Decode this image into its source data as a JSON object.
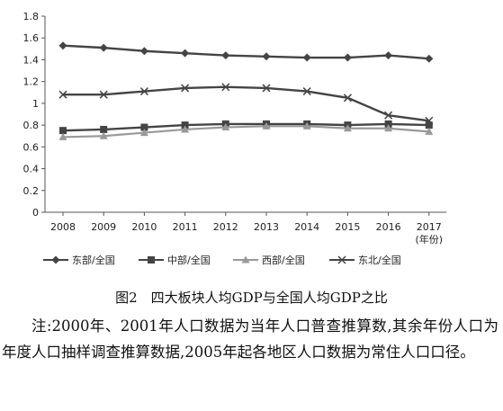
{
  "chart_data": {
    "type": "line",
    "categories": [
      "2008",
      "2009",
      "2010",
      "2011",
      "2012",
      "2013",
      "2014",
      "2015",
      "2016",
      "2017"
    ],
    "x_unit": "(年份)",
    "y_ticks": [
      "0",
      "0.2",
      "0.4",
      "0.6",
      "0.8",
      "1",
      "1.2",
      "1.4",
      "1.6",
      "1.8"
    ],
    "ylim": [
      0,
      1.8
    ],
    "grid": false,
    "legend_position": "bottom",
    "series": [
      {
        "name": "东部/全国",
        "marker": "diamond",
        "values": [
          1.53,
          1.51,
          1.48,
          1.46,
          1.44,
          1.43,
          1.42,
          1.42,
          1.44,
          1.41
        ]
      },
      {
        "name": "中部/全国",
        "marker": "square",
        "values": [
          0.75,
          0.76,
          0.78,
          0.8,
          0.81,
          0.81,
          0.81,
          0.8,
          0.81,
          0.8
        ]
      },
      {
        "name": "西部/全国",
        "marker": "triangle",
        "values": [
          0.69,
          0.7,
          0.73,
          0.76,
          0.78,
          0.79,
          0.79,
          0.77,
          0.77,
          0.74
        ]
      },
      {
        "name": "东北/全国",
        "marker": "x",
        "values": [
          1.08,
          1.08,
          1.11,
          1.14,
          1.15,
          1.14,
          1.11,
          1.05,
          0.89,
          0.84
        ]
      }
    ],
    "title": "图2　四大板块人均GDP与全国人均GDP之比"
  },
  "note": "注:2000年、2001年人口数据为当年人口普查推算数,其余年份人口为年度人口抽样调查推算数据,2005年起各地区人口数据为常住人口口径。",
  "colors": {
    "line": "#444444",
    "triangle": "#999999"
  }
}
